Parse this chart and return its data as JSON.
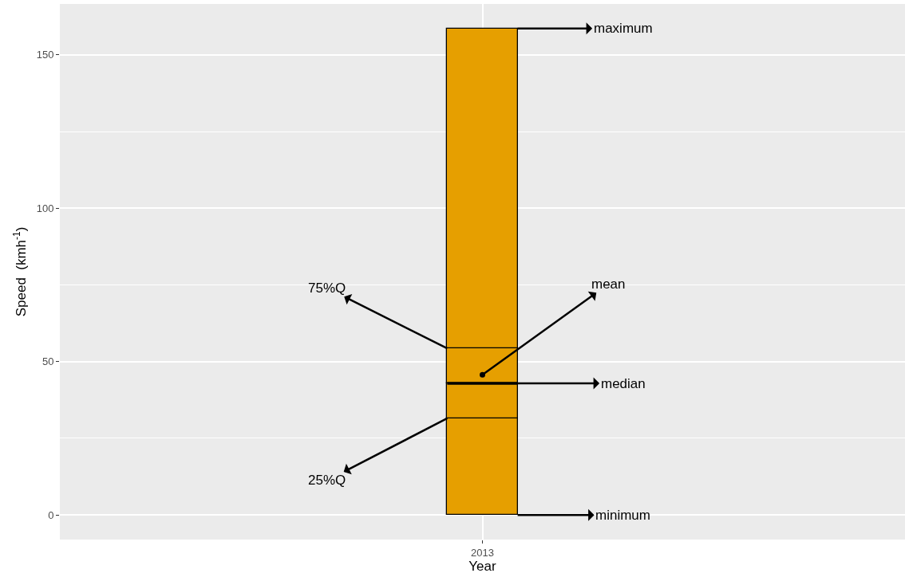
{
  "chart_data": {
    "type": "bar",
    "stacked": true,
    "xlabel": "Year",
    "ylabel": "Speed  (kmh$^{-1}$)",
    "categories": [
      "2013"
    ],
    "series": [
      {
        "color": "#e69f00",
        "values": [
          31.5
        ]
      },
      {
        "color": "#e69f00",
        "values": [
          11.4
        ]
      },
      {
        "color": "#e69f00",
        "values": [
          11.4
        ]
      },
      {
        "color": "#e69f00",
        "values": [
          104.3
        ]
      },
      {
        "type": "scatter",
        "color": "#000000",
        "values": [
          45.7
        ],
        "marker": "circle"
      }
    ],
    "ylim": [
      -8,
      166.6
    ],
    "yticks": [
      0,
      50,
      100,
      150
    ],
    "grid": true,
    "annotations": [
      "maximum",
      "mean",
      "75%Q",
      "median",
      "25%Q",
      "minimum"
    ]
  }
}
